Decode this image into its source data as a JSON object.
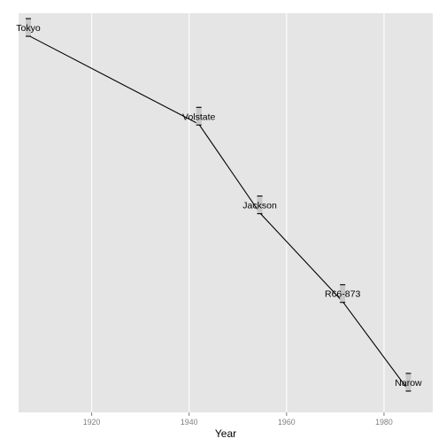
{
  "chart_data": {
    "type": "line",
    "title": "",
    "xlabel": "Year",
    "ylabel": "",
    "xlim": [
      1905,
      1990
    ],
    "ylim": [
      0.75,
      5.25
    ],
    "x_ticks": [
      "1920",
      "1940",
      "1960",
      "1980"
    ],
    "x_tick_values": [
      1920,
      1940,
      1960,
      1980
    ],
    "grid": true,
    "legend": "none",
    "colors": {
      "panel": "#e5e5e5",
      "grid": "#ffffff",
      "line": "#000000",
      "label_bg": "#c8c8c8",
      "tick_text": "#7f7f7f"
    },
    "points": [
      {
        "label": "Tokyo",
        "x": 1907,
        "rank": 5
      },
      {
        "label": "Volstate",
        "x": 1942,
        "rank": 4
      },
      {
        "label": "Jackson",
        "x": 1954.5,
        "rank": 3
      },
      {
        "label": "R66-873",
        "x": 1971.5,
        "rank": 2
      },
      {
        "label": "Narow",
        "x": 1985,
        "rank": 1
      }
    ]
  }
}
